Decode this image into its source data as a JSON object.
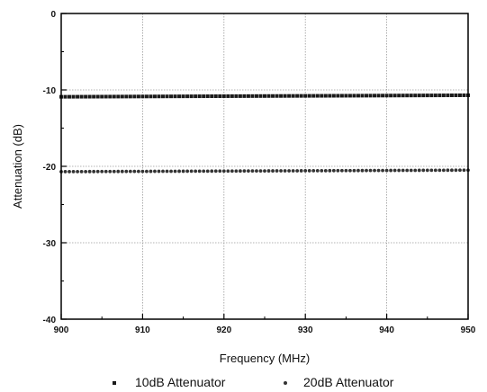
{
  "chart_data": {
    "type": "scatter",
    "title": "",
    "xlabel": "Frequency (MHz)",
    "ylabel": "Attenuation (dB)",
    "xlim": [
      900,
      950
    ],
    "ylim": [
      -40,
      0
    ],
    "xticks": [
      "900",
      "910",
      "920",
      "930",
      "940",
      "950"
    ],
    "yticks": [
      "0",
      "-10",
      "-20",
      "-30",
      "-40"
    ],
    "grid": true,
    "legend_position": "bottom",
    "series": [
      {
        "name": "10dB Attenuator",
        "color": "#1a1a1a",
        "marker": "square",
        "x_start": 900,
        "x_end": 950,
        "y_start": -10.9,
        "y_end": -10.7
      },
      {
        "name": "20dB Attenuator",
        "color": "#333333",
        "marker": "circle",
        "x_start": 900,
        "x_end": 950,
        "y_start": -20.7,
        "y_end": -20.5
      }
    ]
  }
}
